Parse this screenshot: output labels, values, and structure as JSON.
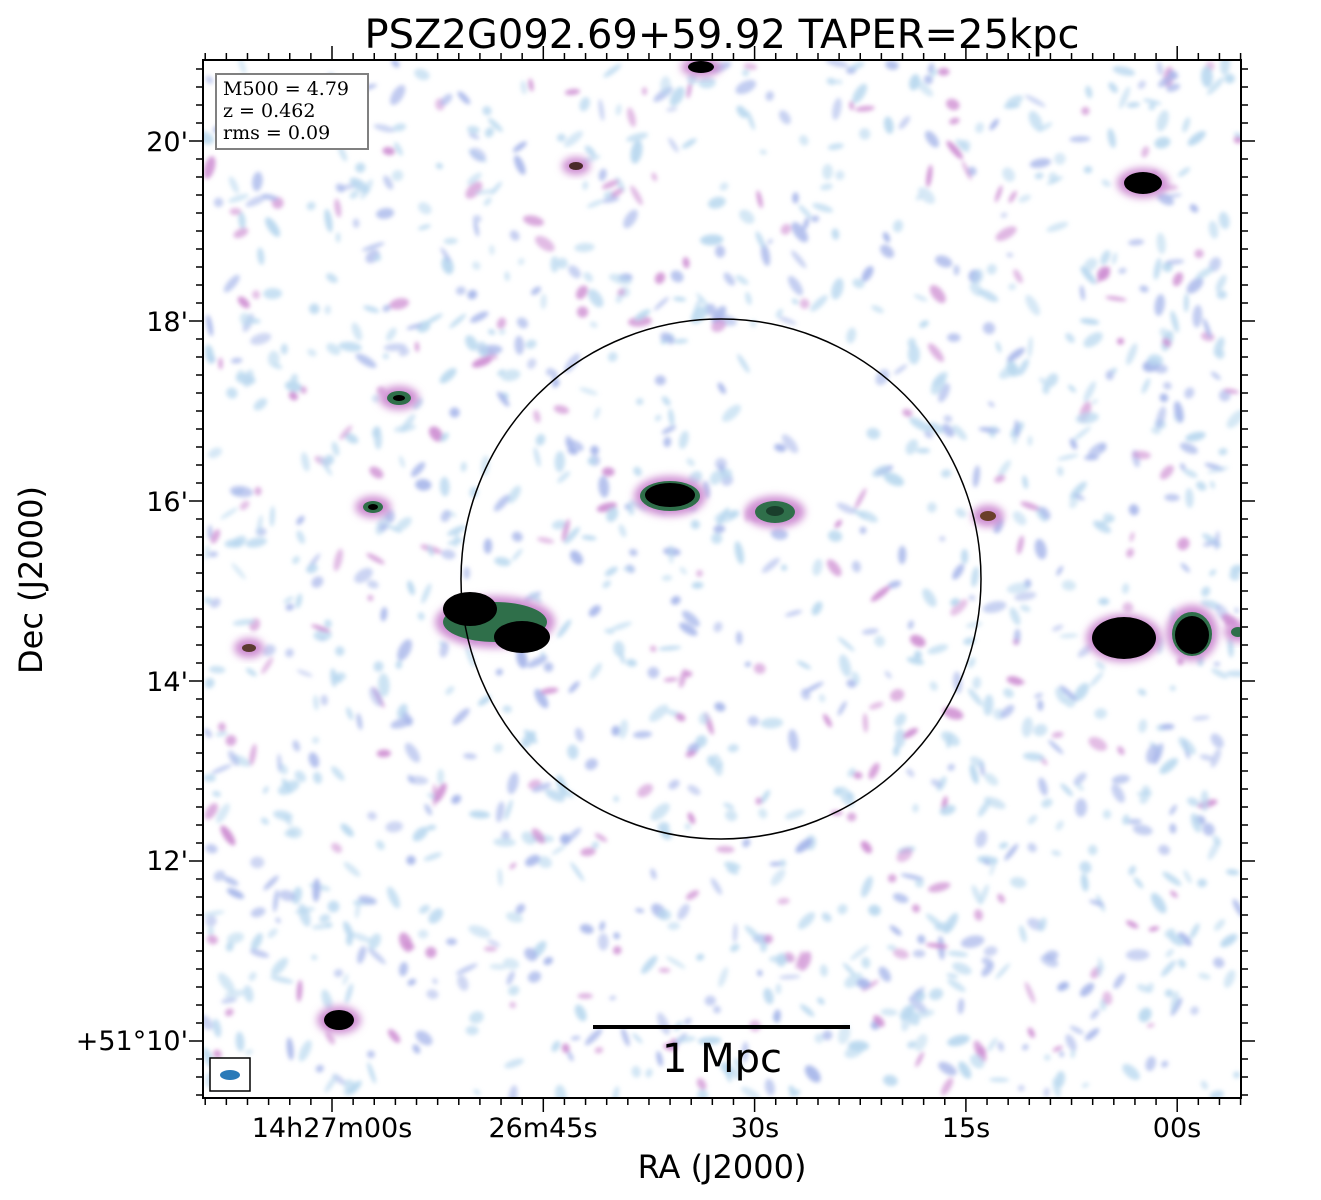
{
  "figure": {
    "title": "PSZ2G092.69+59.92 TAPER=25kpc",
    "xlabel": "RA (J2000)",
    "ylabel": "Dec (J2000)",
    "x_ticks": [
      "14h27m00s",
      "26m45s",
      "30s",
      "15s",
      "00s"
    ],
    "y_ticks": [
      "20'",
      "18'",
      "16'",
      "14'",
      "12'",
      "+51°10'"
    ],
    "info_box": [
      "M500 = 4.79",
      "z = 0.462",
      "rms = 0.09"
    ],
    "scale_bar_label": "1 Mpc",
    "colors": {
      "background": "#ffffff",
      "noise_light": "#b9d8ef",
      "noise_blue": "#a7b6ea",
      "noise_pink": "#cf8fd3",
      "source_green": "#2f6f4a",
      "source_core": "#000000",
      "beam": "#2a7ab8"
    }
  }
}
